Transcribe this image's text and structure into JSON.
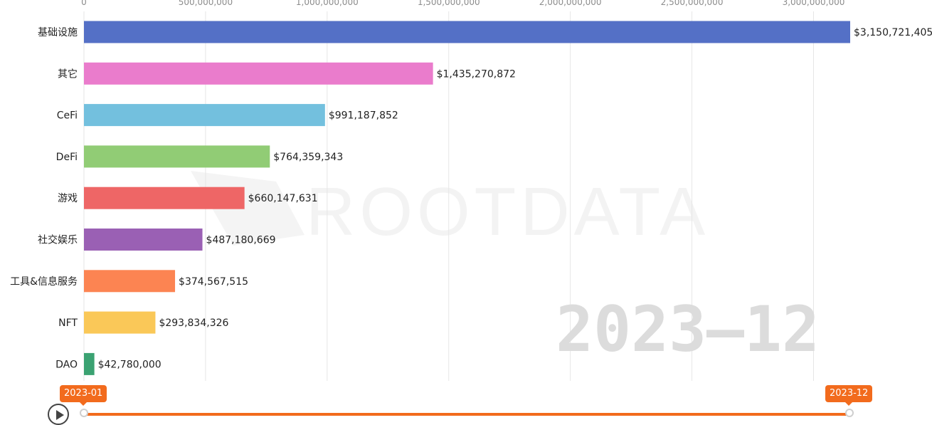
{
  "chart_data": {
    "type": "bar",
    "orientation": "horizontal",
    "title": "",
    "xlabel": "",
    "ylabel": "",
    "xlim": [
      0,
      3150721405
    ],
    "x_ticks": [
      0,
      500000000,
      1000000000,
      1500000000,
      2000000000,
      2500000000,
      3000000000
    ],
    "x_tick_labels": [
      "0",
      "500,000,000",
      "1,000,000,000",
      "1,500,000,000",
      "2,000,000,000",
      "2,500,000,000",
      "3,000,000,000"
    ],
    "grid": true,
    "categories": [
      "基础设施",
      "其它",
      "CeFi",
      "DeFi",
      "游戏",
      "社交娱乐",
      "工具&信息服务",
      "NFT",
      "DAO"
    ],
    "values": [
      3150721405,
      1435270872,
      991187852,
      764359343,
      660147631,
      487180669,
      374567515,
      293834326,
      42780000
    ],
    "value_labels": [
      "$3,150,721,405",
      "$1,435,270,872",
      "$991,187,852",
      "$764,359,343",
      "$660,147,631",
      "$487,180,669",
      "$374,567,515",
      "$293,834,326",
      "$42,780,000"
    ],
    "colors": [
      "#5470c6",
      "#ea7ccc",
      "#73c0de",
      "#91cc75",
      "#ee6666",
      "#9a60b4",
      "#fc8452",
      "#fac858",
      "#3ba272"
    ],
    "current_period": "2023—12",
    "watermark": "ROOTDATA"
  },
  "timeline": {
    "start_label": "2023-01",
    "end_label": "2023-12",
    "accent_color": "#f26b1d",
    "play_icon": "play-icon"
  }
}
